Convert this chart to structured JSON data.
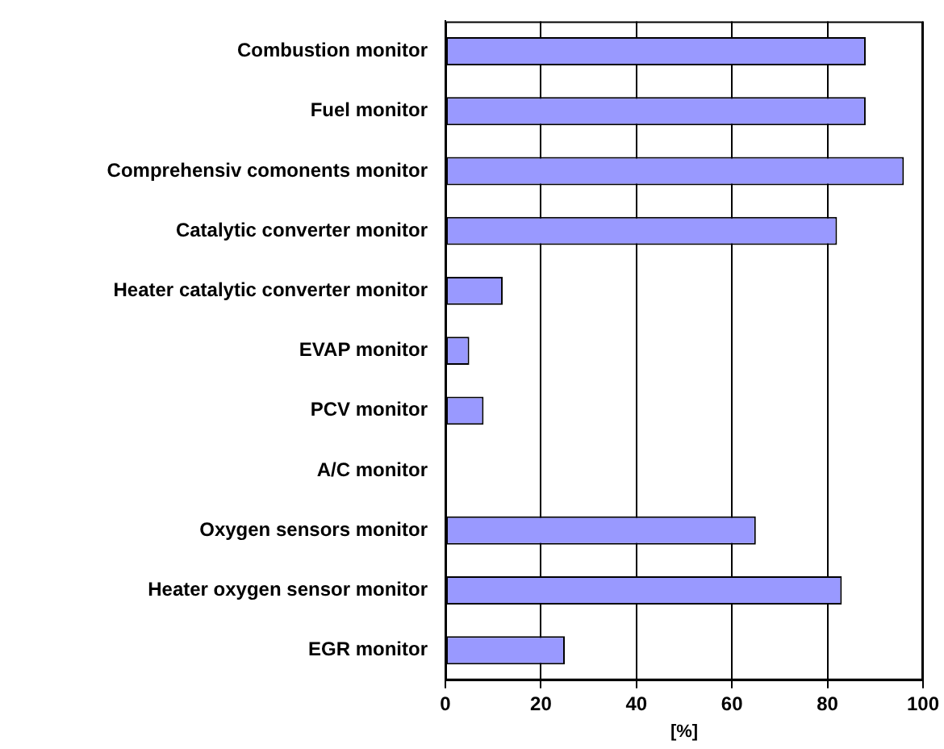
{
  "chart_data": {
    "type": "bar",
    "orientation": "horizontal",
    "xlabel": "[%]",
    "categories": [
      "Combustion monitor",
      "Fuel monitor",
      "Comprehensiv comonents monitor",
      "Catalytic converter monitor",
      "Heater catalytic converter monitor",
      "EVAP monitor",
      "PCV monitor",
      "A/C monitor",
      "Oxygen sensors monitor",
      "Heater oxygen sensor monitor",
      "EGR monitor"
    ],
    "values": [
      88,
      88,
      96,
      82,
      12,
      5,
      8,
      0,
      65,
      83,
      25
    ],
    "color": "#9999ff",
    "xlim": [
      0,
      100
    ],
    "xticks": [
      0,
      20,
      40,
      60,
      80,
      100
    ],
    "grid": "x",
    "legend": false
  }
}
